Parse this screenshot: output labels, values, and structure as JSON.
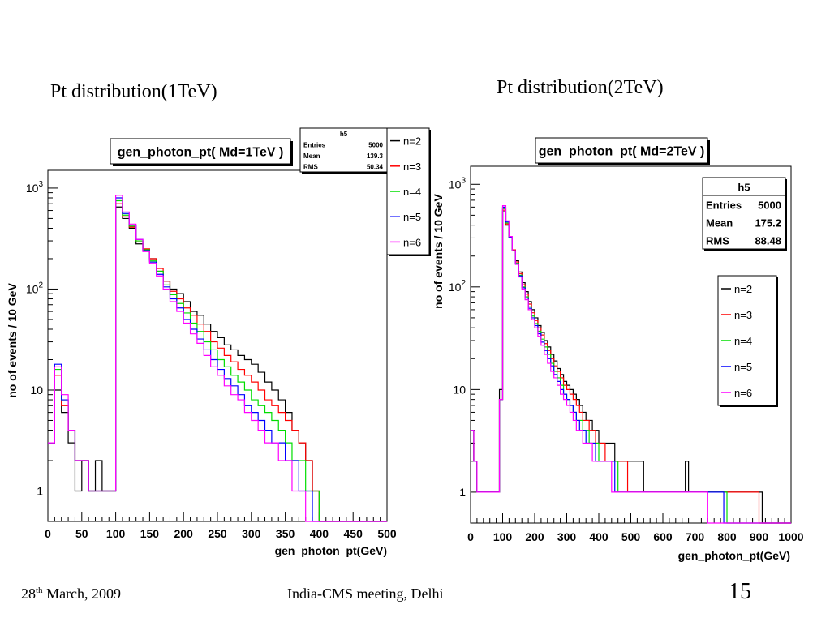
{
  "slide": {
    "title_left": "Pt distribution(1TeV)",
    "title_right": "Pt distribution(2TeV)",
    "footer": {
      "date_day": "28",
      "date_suffix": "th",
      "date_rest": " March, 2009",
      "meeting": "India-CMS meeting, Delhi",
      "page": "15"
    }
  },
  "chart_data": [
    {
      "type": "histogram",
      "title": "gen_photon_pt( Md=1TeV )",
      "xlabel": "gen_photon_pt(GeV)",
      "ylabel": "no of events / 10 GeV",
      "xlim": [
        0,
        500
      ],
      "ylim": [
        0.5,
        1500
      ],
      "yscale": "log",
      "xticks": [
        "0",
        "50",
        "100",
        "150",
        "200",
        "250",
        "300",
        "350",
        "400",
        "450",
        "500"
      ],
      "yticks": [
        {
          "value": 1,
          "base": "1",
          "exp": ""
        },
        {
          "value": 10,
          "base": "10",
          "exp": ""
        },
        {
          "value": 100,
          "base": "10",
          "exp": "2"
        },
        {
          "value": 1000,
          "base": "10",
          "exp": "3"
        }
      ],
      "bin_width": 10,
      "stats": {
        "name": "h5",
        "entries_label": "Entries",
        "entries": "5000",
        "mean_label": "Mean",
        "mean": "139.3",
        "rms_label": "RMS",
        "rms": "50.34"
      },
      "legend_position": "top-right-outside",
      "series": [
        {
          "name": "n=2",
          "color": "#000000",
          "values": [
            3,
            10,
            6,
            3,
            1,
            2,
            1,
            2,
            1,
            1,
            650,
            500,
            400,
            280,
            240,
            200,
            150,
            120,
            100,
            90,
            75,
            60,
            55,
            45,
            38,
            33,
            28,
            25,
            22,
            20,
            18,
            15,
            12,
            10,
            8,
            6,
            4,
            3,
            2,
            1,
            0,
            0,
            0,
            0,
            0,
            0,
            0,
            0,
            0,
            0
          ]
        },
        {
          "name": "n=3",
          "color": "#ff0000",
          "values": [
            3,
            14,
            7,
            4,
            2,
            2,
            1,
            1,
            1,
            1,
            700,
            520,
            410,
            300,
            250,
            200,
            160,
            120,
            95,
            80,
            65,
            55,
            45,
            38,
            30,
            26,
            22,
            19,
            16,
            14,
            12,
            10,
            8,
            7,
            6,
            5,
            4,
            3,
            2,
            1,
            0,
            0,
            0,
            0,
            0,
            0,
            0,
            0,
            0,
            0
          ]
        },
        {
          "name": "n=4",
          "color": "#00dd00",
          "values": [
            3,
            16,
            8,
            4,
            2,
            2,
            1,
            1,
            1,
            1,
            750,
            540,
            420,
            300,
            245,
            190,
            150,
            110,
            88,
            72,
            58,
            46,
            38,
            30,
            25,
            20,
            17,
            14,
            12,
            10,
            8,
            7,
            6,
            5,
            4,
            3,
            2,
            2,
            1,
            1,
            0,
            0,
            0,
            0,
            0,
            0,
            0,
            0,
            0,
            0
          ]
        },
        {
          "name": "n=5",
          "color": "#0000ff",
          "values": [
            3,
            18,
            8,
            4,
            2,
            2,
            1,
            1,
            1,
            1,
            800,
            560,
            430,
            310,
            240,
            185,
            140,
            105,
            80,
            65,
            50,
            40,
            32,
            25,
            20,
            16,
            13,
            11,
            9,
            7,
            6,
            5,
            4,
            3,
            3,
            2,
            2,
            1,
            1,
            0,
            0,
            0,
            0,
            0,
            0,
            0,
            0,
            0,
            0,
            0
          ]
        },
        {
          "name": "n=6",
          "color": "#ff00ff",
          "values": [
            3,
            17,
            9,
            4,
            2,
            2,
            1,
            1,
            1,
            1,
            850,
            580,
            440,
            310,
            235,
            180,
            135,
            100,
            75,
            60,
            46,
            36,
            29,
            22,
            17,
            14,
            11,
            9,
            8,
            6,
            5,
            4,
            3,
            3,
            2,
            2,
            1,
            1,
            0,
            0,
            0,
            0,
            0,
            0,
            0,
            0,
            0,
            0,
            0,
            0
          ]
        }
      ]
    },
    {
      "type": "histogram",
      "title": "gen_photon_pt( Md=2TeV )",
      "xlabel": "gen_photon_pt(GeV)",
      "ylabel": "no of events / 10 GeV",
      "xlim": [
        0,
        1000
      ],
      "ylim": [
        0.5,
        1500
      ],
      "yscale": "log",
      "xticks": [
        "0",
        "100",
        "200",
        "300",
        "400",
        "500",
        "600",
        "700",
        "800",
        "900",
        "1000"
      ],
      "yticks": [
        {
          "value": 1,
          "base": "1",
          "exp": ""
        },
        {
          "value": 10,
          "base": "10",
          "exp": ""
        },
        {
          "value": 100,
          "base": "10",
          "exp": "2"
        },
        {
          "value": 1000,
          "base": "10",
          "exp": "3"
        }
      ],
      "bin_width": 10,
      "stats": {
        "name": "h5",
        "entries_label": "Entries",
        "entries": "5000",
        "mean_label": "Mean",
        "mean": "175.2",
        "rms_label": "RMS",
        "rms": "88.48"
      },
      "legend_position": "right",
      "series": [
        {
          "name": "n=2",
          "color": "#000000",
          "values": [
            3,
            2,
            1,
            1,
            1,
            1,
            1,
            1,
            1,
            10,
            540,
            400,
            300,
            230,
            180,
            140,
            110,
            90,
            72,
            60,
            50,
            42,
            36,
            30,
            26,
            22,
            19,
            16,
            14,
            12,
            11,
            10,
            9,
            8,
            7,
            6,
            5,
            5,
            4,
            4,
            3,
            3,
            3,
            3,
            3,
            2,
            2,
            2,
            2,
            2,
            2,
            2,
            2,
            2,
            1,
            1,
            1,
            1,
            1,
            1,
            1,
            1,
            1,
            1,
            1,
            1,
            1,
            2,
            1,
            1,
            1,
            1,
            1,
            1,
            1,
            1,
            1,
            1,
            1,
            1,
            1,
            1,
            1,
            1,
            1,
            1,
            1,
            1,
            1,
            1,
            1,
            0,
            0,
            0,
            0,
            0,
            0,
            0,
            0,
            0
          ]
        },
        {
          "name": "n=3",
          "color": "#ff0000",
          "values": [
            4,
            2,
            1,
            1,
            1,
            1,
            1,
            1,
            1,
            8,
            560,
            410,
            300,
            230,
            175,
            135,
            105,
            85,
            68,
            56,
            47,
            40,
            34,
            28,
            24,
            20,
            17,
            15,
            13,
            11,
            10,
            9,
            8,
            7,
            6,
            5,
            5,
            4,
            4,
            3,
            3,
            3,
            2,
            2,
            2,
            2,
            2,
            2,
            2,
            1,
            1,
            1,
            1,
            1,
            1,
            1,
            1,
            1,
            1,
            1,
            1,
            1,
            1,
            1,
            1,
            1,
            1,
            1,
            1,
            1,
            1,
            1,
            1,
            1,
            1,
            1,
            1,
            1,
            1,
            1,
            1,
            1,
            1,
            1,
            1,
            1,
            1,
            1,
            1,
            1,
            0,
            0,
            0,
            0,
            0,
            0,
            0,
            0,
            0,
            0
          ]
        },
        {
          "name": "n=4",
          "color": "#00dd00",
          "values": [
            4,
            2,
            1,
            1,
            1,
            1,
            1,
            1,
            1,
            8,
            580,
            420,
            300,
            225,
            170,
            130,
            100,
            80,
            64,
            52,
            44,
            37,
            31,
            26,
            22,
            18,
            15,
            13,
            11,
            9,
            8,
            7,
            6,
            5,
            5,
            4,
            4,
            3,
            3,
            3,
            2,
            2,
            2,
            2,
            2,
            2,
            1,
            1,
            1,
            1,
            1,
            1,
            1,
            1,
            1,
            1,
            1,
            1,
            1,
            1,
            1,
            1,
            1,
            1,
            1,
            1,
            1,
            1,
            1,
            1,
            1,
            1,
            1,
            1,
            1,
            1,
            1,
            1,
            1,
            1,
            0,
            0,
            0,
            0,
            0,
            0,
            0,
            0,
            0,
            0,
            0,
            0,
            0,
            0,
            0,
            0,
            0,
            0,
            0,
            0
          ]
        },
        {
          "name": "n=5",
          "color": "#0000ff",
          "values": [
            4,
            2,
            1,
            1,
            1,
            1,
            1,
            1,
            1,
            8,
            600,
            430,
            305,
            225,
            168,
            128,
            98,
            78,
            62,
            50,
            42,
            35,
            29,
            24,
            20,
            17,
            14,
            12,
            10,
            9,
            8,
            7,
            6,
            5,
            4,
            4,
            3,
            3,
            3,
            2,
            2,
            2,
            2,
            2,
            2,
            1,
            1,
            1,
            1,
            1,
            1,
            1,
            1,
            1,
            1,
            1,
            1,
            1,
            1,
            1,
            1,
            1,
            1,
            1,
            1,
            1,
            1,
            1,
            1,
            1,
            1,
            1,
            1,
            1,
            1,
            1,
            1,
            1,
            1,
            0,
            0,
            0,
            0,
            0,
            0,
            0,
            0,
            0,
            0,
            0,
            0,
            0,
            0,
            0,
            0,
            0,
            0,
            0,
            0,
            0
          ]
        },
        {
          "name": "n=6",
          "color": "#ff00ff",
          "values": [
            4,
            2,
            1,
            1,
            1,
            1,
            1,
            1,
            1,
            8,
            620,
            440,
            310,
            225,
            166,
            125,
            95,
            75,
            60,
            48,
            40,
            33,
            27,
            22,
            18,
            15,
            13,
            11,
            9,
            8,
            7,
            6,
            5,
            4,
            4,
            3,
            3,
            3,
            2,
            2,
            2,
            2,
            2,
            2,
            1,
            1,
            1,
            1,
            1,
            1,
            1,
            1,
            1,
            1,
            1,
            1,
            1,
            1,
            1,
            1,
            1,
            1,
            1,
            1,
            1,
            1,
            1,
            1,
            1,
            1,
            1,
            1,
            1,
            1,
            0,
            0,
            0,
            0,
            0,
            0,
            0,
            0,
            0,
            0,
            0,
            0,
            0,
            0,
            0,
            0,
            0,
            0,
            0,
            0,
            0,
            0,
            0,
            0,
            0,
            0
          ]
        }
      ]
    }
  ]
}
